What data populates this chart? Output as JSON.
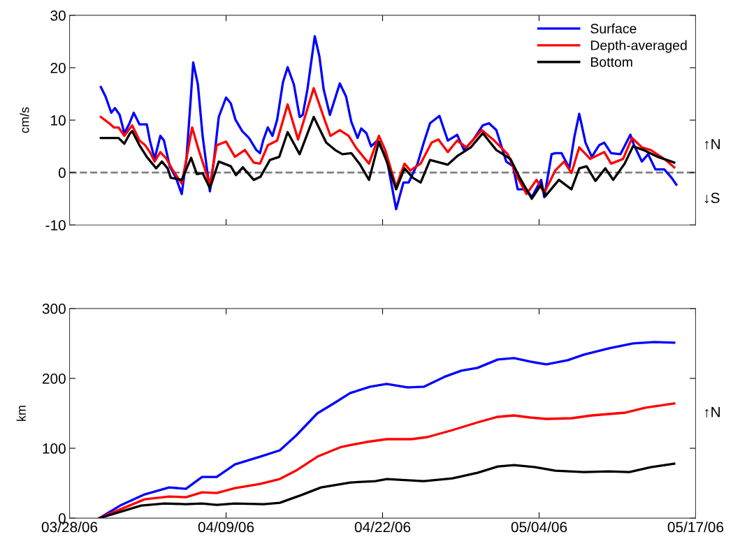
{
  "chart_data": [
    {
      "type": "line",
      "ylabel": "cm/s",
      "xlim": [
        "2006-03-28",
        "2006-05-17"
      ],
      "xticks": [
        {
          "value": "2006-03-28",
          "label": null
        },
        {
          "value": "2006-04-09T12:00",
          "label": null
        },
        {
          "value": "2006-04-22",
          "label": null
        },
        {
          "value": "2006-05-04T12:00",
          "label": null
        },
        {
          "value": "2006-05-17",
          "label": null
        }
      ],
      "ylim": [
        -10,
        30
      ],
      "yticks": [
        -10,
        0,
        10,
        20,
        30
      ],
      "tick_labels": "y",
      "legend": "top right",
      "line_style": "solid",
      "ref_lines": [
        {
          "axis": "y",
          "value": 0,
          "color": "#808080",
          "line_style": "dashed"
        }
      ],
      "annotations": [
        "↑N",
        "↓S"
      ],
      "series": [
        {
          "name": "Surface",
          "color": "#0000ff",
          "x": [
            "2006-03-30T12:00",
            "2006-03-30T21:00",
            "2006-03-31T08:00",
            "2006-03-31T15:00",
            "2006-04-01T00:00",
            "2006-04-01T09:00",
            "2006-04-01T18:00",
            "2006-04-02T03:00",
            "2006-04-02T14:00",
            "2006-04-03T04:00",
            "2006-04-03T10:00",
            "2006-04-03T19:00",
            "2006-04-04T06:00",
            "2006-04-04T13:00",
            "2006-04-05T00:00",
            "2006-04-05T12:00",
            "2006-04-05T23:00",
            "2006-04-06T08:00",
            "2006-04-06T16:00",
            "2006-04-06T21:00",
            "2006-04-07T06:00",
            "2006-04-07T15:00",
            "2006-04-08T05:00",
            "2006-04-08T13:00",
            "2006-04-08T22:00",
            "2006-04-09T12:00",
            "2006-04-09T21:00",
            "2006-04-10T06:00",
            "2006-04-10T19:00",
            "2006-04-11T08:00",
            "2006-04-11T22:00",
            "2006-04-12T05:00",
            "2006-04-12T11:00",
            "2006-04-12T20:00",
            "2006-04-13T05:00",
            "2006-04-13T14:00",
            "2006-04-14T01:00",
            "2006-04-14T10:00",
            "2006-04-14T22:00",
            "2006-04-15T09:00",
            "2006-04-15T15:00",
            "2006-04-16T00:00",
            "2006-04-16T14:00",
            "2006-04-16T23:00",
            "2006-04-17T07:00",
            "2006-04-17T19:00",
            "2006-04-18T02:00",
            "2006-04-18T14:00",
            "2006-04-19T02:00",
            "2006-04-19T12:00",
            "2006-04-20T00:00",
            "2006-04-20T07:00",
            "2006-04-20T17:00",
            "2006-04-21T02:00",
            "2006-04-21T14:00",
            "2006-04-22T08:00",
            "2006-04-23T02:00",
            "2006-04-23T16:00",
            "2006-04-24T02:00",
            "2006-04-24T19:00",
            "2006-04-25T07:00",
            "2006-04-25T19:00",
            "2006-04-26T13:00",
            "2006-04-27T05:00",
            "2006-04-27T23:00",
            "2006-04-28T12:00",
            "2006-04-29T06:00",
            "2006-04-30T00:00",
            "2006-04-30T12:00",
            "2006-05-01T02:00",
            "2006-05-01T21:00",
            "2006-05-02T10:00",
            "2006-05-02T19:00",
            "2006-05-03T12:00",
            "2006-05-03T22:00",
            "2006-05-04T16:00",
            "2006-05-04T22:00",
            "2006-05-05T12:00",
            "2006-05-05T19:00",
            "2006-05-06T07:00",
            "2006-05-06T22:00",
            "2006-05-07T08:00",
            "2006-05-07T17:00",
            "2006-05-08T05:00",
            "2006-05-08T17:00",
            "2006-05-09T07:00",
            "2006-05-09T17:00",
            "2006-05-10T06:00",
            "2006-05-11T00:00",
            "2006-05-11T19:00",
            "2006-05-12T02:00",
            "2006-05-12T17:00",
            "2006-05-13T05:00",
            "2006-05-13T19:00",
            "2006-05-14T12:00",
            "2006-05-15T02:00",
            "2006-05-15T11:00"
          ],
          "values": [
            16.3,
            14.5,
            11.4,
            12.3,
            11.0,
            7.5,
            9.2,
            11.4,
            9.2,
            9.2,
            6.1,
            2.6,
            7.0,
            6.1,
            1.2,
            -1.0,
            -4.1,
            2.6,
            13.7,
            21.0,
            16.8,
            7.0,
            -3.6,
            2.6,
            10.6,
            14.3,
            13.2,
            10.1,
            7.9,
            6.6,
            4.3,
            3.7,
            6.1,
            8.6,
            7.0,
            10.1,
            17.2,
            20.1,
            16.8,
            10.6,
            11.0,
            15.9,
            26.0,
            22.1,
            15.9,
            11.0,
            13.2,
            17.0,
            14.5,
            9.7,
            6.6,
            8.4,
            7.5,
            5.0,
            6.1,
            2.6,
            -7.0,
            -1.9,
            -1.9,
            1.7,
            5.7,
            9.4,
            10.8,
            6.1,
            7.2,
            4.3,
            6.3,
            9.0,
            9.4,
            8.1,
            2.1,
            1.2,
            -3.2,
            -3.2,
            -4.7,
            -1.4,
            -4.7,
            3.5,
            3.7,
            3.7,
            0.8,
            7.0,
            11.2,
            5.7,
            3.0,
            5.2,
            5.7,
            3.7,
            3.5,
            7.2,
            5.2,
            2.1,
            3.5,
            0.6,
            0.6,
            -1.0,
            -2.3
          ]
        },
        {
          "name": "Depth-averaged",
          "color": "#ff0000",
          "x": [
            "2006-03-30T12:00",
            "2006-03-31T04:00",
            "2006-03-31T13:00",
            "2006-03-31T22:00",
            "2006-04-01T09:00",
            "2006-04-02T00:00",
            "2006-04-02T14:00",
            "2006-04-03T01:00",
            "2006-04-03T10:00",
            "2006-04-03T19:00",
            "2006-04-04T06:00",
            "2006-04-04T18:00",
            "2006-04-05T05:00",
            "2006-04-05T23:00",
            "2006-04-06T08:00",
            "2006-04-06T19:00",
            "2006-04-07T06:00",
            "2006-04-08T05:00",
            "2006-04-08T18:00",
            "2006-04-09T12:00",
            "2006-04-10T05:00",
            "2006-04-11T00:00",
            "2006-04-11T17:00",
            "2006-04-12T05:00",
            "2006-04-12T20:00",
            "2006-04-13T14:00",
            "2006-04-14T10:00",
            "2006-04-15T06:00",
            "2006-04-16T12:00",
            "2006-04-17T07:00",
            "2006-04-17T20:00",
            "2006-04-18T14:00",
            "2006-04-19T07:00",
            "2006-04-19T22:00",
            "2006-04-20T22:00",
            "2006-04-21T17:00",
            "2006-04-22T05:00",
            "2006-04-23T02:00",
            "2006-04-23T18:00",
            "2006-04-24T05:00",
            "2006-04-25T01:00",
            "2006-04-25T22:00",
            "2006-04-26T11:00",
            "2006-04-27T05:00",
            "2006-04-27T23:00",
            "2006-04-28T17:00",
            "2006-04-29T22:00",
            "2006-04-30T22:00",
            "2006-05-02T00:00",
            "2006-05-02T19:00",
            "2006-05-03T12:00",
            "2006-05-04T07:00",
            "2006-05-04T22:00",
            "2006-05-05T19:00",
            "2006-05-06T12:00",
            "2006-05-07T02:00",
            "2006-05-07T17:00",
            "2006-05-08T14:00",
            "2006-05-09T17:00",
            "2006-05-10T06:00",
            "2006-05-11T05:00",
            "2006-05-11T22:00",
            "2006-05-12T17:00",
            "2006-05-13T10:00",
            "2006-05-14T12:00",
            "2006-05-15T07:00"
          ],
          "values": [
            10.6,
            9.4,
            8.6,
            8.6,
            7.0,
            9.0,
            6.1,
            5.2,
            3.9,
            2.1,
            3.9,
            2.6,
            0.6,
            -2.1,
            2.6,
            8.6,
            4.8,
            -2.3,
            5.2,
            5.9,
            3.0,
            4.3,
            1.9,
            1.7,
            5.2,
            6.1,
            13.0,
            6.3,
            16.1,
            10.6,
            7.0,
            8.1,
            7.0,
            4.6,
            1.7,
            7.0,
            4.3,
            -2.7,
            1.7,
            0.4,
            1.7,
            5.7,
            6.3,
            3.9,
            6.1,
            4.8,
            8.1,
            6.1,
            3.5,
            -1.0,
            -4.1,
            -1.4,
            -3.9,
            0.4,
            2.1,
            -0.1,
            4.8,
            2.6,
            3.9,
            1.7,
            2.6,
            6.6,
            4.8,
            4.3,
            2.6,
            1.0
          ]
        },
        {
          "name": "Bottom",
          "color": "#000000",
          "x": [
            "2006-03-30T12:00",
            "2006-03-31T04:00",
            "2006-03-31T22:00",
            "2006-04-01T09:00",
            "2006-04-01T20:00",
            "2006-04-02T00:00",
            "2006-04-02T14:00",
            "2006-04-03T04:00",
            "2006-04-03T22:00",
            "2006-04-04T09:00",
            "2006-04-04T20:00",
            "2006-04-05T02:00",
            "2006-04-05T23:00",
            "2006-04-06T17:00",
            "2006-04-07T04:00",
            "2006-04-07T15:00",
            "2006-04-08T05:00",
            "2006-04-08T22:00",
            "2006-04-09T21:00",
            "2006-04-10T07:00",
            "2006-04-10T20:00",
            "2006-04-11T17:00",
            "2006-04-12T06:00",
            "2006-04-13T00:00",
            "2006-04-13T18:00",
            "2006-04-14T10:00",
            "2006-04-15T09:00",
            "2006-04-16T12:00",
            "2006-04-17T12:00",
            "2006-04-18T05:00",
            "2006-04-18T19:00",
            "2006-04-19T12:00",
            "2006-04-20T05:00",
            "2006-04-20T22:00",
            "2006-04-21T17:00",
            "2006-04-22T08:00",
            "2006-04-23T02:00",
            "2006-04-23T18:00",
            "2006-04-24T10:00",
            "2006-04-25T01:00",
            "2006-04-25T19:00",
            "2006-04-27T05:00",
            "2006-04-28T00:00",
            "2006-04-29T01:00",
            "2006-04-30T00:00",
            "2006-05-01T02:00",
            "2006-05-02T05:00",
            "2006-05-02T23:00",
            "2006-05-03T22:00",
            "2006-05-04T16:00",
            "2006-05-05T00:00",
            "2006-05-06T02:00",
            "2006-05-07T02:00",
            "2006-05-07T17:00",
            "2006-05-08T07:00",
            "2006-05-09T00:00",
            "2006-05-09T19:00",
            "2006-05-10T10:00",
            "2006-05-11T08:00",
            "2006-05-12T00:00",
            "2006-05-12T20:00",
            "2006-05-13T23:00",
            "2006-05-14T17:00",
            "2006-05-15T07:00"
          ],
          "values": [
            6.6,
            6.6,
            6.6,
            5.5,
            7.5,
            7.9,
            5.2,
            3.0,
            0.8,
            2.1,
            0.8,
            -1.0,
            -1.4,
            2.8,
            -0.3,
            -0.1,
            -3.0,
            2.1,
            1.2,
            -0.5,
            1.0,
            -1.4,
            -0.8,
            2.4,
            3.0,
            7.7,
            3.5,
            10.6,
            5.7,
            4.3,
            3.5,
            3.7,
            1.5,
            -1.4,
            5.9,
            2.1,
            -3.2,
            0.8,
            -1.0,
            -1.9,
            2.4,
            1.5,
            3.2,
            4.8,
            7.5,
            4.3,
            2.6,
            -1.0,
            -5.0,
            -2.3,
            -4.5,
            -1.4,
            -3.2,
            0.8,
            1.2,
            -1.6,
            0.8,
            -1.4,
            1.7,
            5.0,
            4.3,
            3.0,
            2.4,
            1.9
          ]
        }
      ]
    },
    {
      "type": "line",
      "ylabel": "km",
      "xlim": [
        "2006-03-28",
        "2006-05-17"
      ],
      "xticks": [
        {
          "value": "2006-03-28",
          "label": "03/28/06"
        },
        {
          "value": "2006-04-09T12:00",
          "label": "04/09/06"
        },
        {
          "value": "2006-04-22",
          "label": "04/22/06"
        },
        {
          "value": "2006-05-04T12:00",
          "label": "05/04/06"
        },
        {
          "value": "2006-05-17",
          "label": "05/17/06"
        }
      ],
      "ylim": [
        0,
        300
      ],
      "yticks": [
        0,
        100,
        200,
        300
      ],
      "line_style": "solid",
      "annotations": [
        "↑N"
      ],
      "series": [
        {
          "color": "#0000ff",
          "x": [
            "2006-03-30T09:00",
            "2006-04-01T01:00",
            "2006-04-03T00:00",
            "2006-04-04T23:00",
            "2006-04-06T07:00",
            "2006-04-07T14:00",
            "2006-04-08T18:00",
            "2006-04-10T05:00",
            "2006-04-12T05:00",
            "2006-04-13T19:00",
            "2006-04-15T02:00",
            "2006-04-16T19:00",
            "2006-04-18T02:00",
            "2006-04-19T10:00",
            "2006-04-21T00:00",
            "2006-04-22T08:00",
            "2006-04-24T00:00",
            "2006-04-25T07:00",
            "2006-04-26T22:00",
            "2006-04-28T07:00",
            "2006-04-29T14:00",
            "2006-05-01T05:00",
            "2006-05-02T12:00",
            "2006-05-03T19:00",
            "2006-05-05T02:00",
            "2006-05-06T19:00",
            "2006-05-08T02:00",
            "2006-05-10T02:00",
            "2006-05-12T00:00",
            "2006-05-13T17:00",
            "2006-05-15T07:00"
          ],
          "values": [
            0,
            18,
            34,
            44,
            42,
            59,
            59,
            77,
            88,
            97,
            118,
            150,
            164,
            179,
            188,
            192,
            187,
            188,
            202,
            211,
            215,
            227,
            229,
            224,
            220,
            226,
            234,
            243,
            250,
            252,
            251
          ]
        },
        {
          "color": "#ff0000",
          "x": [
            "2006-03-30T09:00",
            "2006-04-01T09:00",
            "2006-04-03T00:00",
            "2006-04-04T23:00",
            "2006-04-06T07:00",
            "2006-04-07T14:00",
            "2006-04-08T18:00",
            "2006-04-10T05:00",
            "2006-04-12T05:00",
            "2006-04-13T19:00",
            "2006-04-15T02:00",
            "2006-04-16T19:00",
            "2006-04-18T17:00",
            "2006-04-20T17:00",
            "2006-04-22T08:00",
            "2006-04-24T07:00",
            "2006-04-25T14:00",
            "2006-04-27T14:00",
            "2006-04-29T14:00",
            "2006-05-01T05:00",
            "2006-05-02T12:00",
            "2006-05-03T19:00",
            "2006-05-05T02:00",
            "2006-05-07T02:00",
            "2006-05-08T17:00",
            "2006-05-11T10:00",
            "2006-05-13T00:00",
            "2006-05-15T07:00"
          ],
          "values": [
            0,
            15,
            27,
            31,
            30,
            37,
            36,
            43,
            49,
            56,
            68,
            88,
            102,
            109,
            113,
            113,
            116,
            126,
            137,
            145,
            147,
            144,
            142,
            143,
            147,
            151,
            158,
            164
          ]
        },
        {
          "color": "#000000",
          "x": [
            "2006-03-30T09:00",
            "2006-04-01T01:00",
            "2006-04-02T17:00",
            "2006-04-04T14:00",
            "2006-04-06T07:00",
            "2006-04-07T14:00",
            "2006-04-08T18:00",
            "2006-04-10T05:00",
            "2006-04-12T12:00",
            "2006-04-13T19:00",
            "2006-04-15T12:00",
            "2006-04-17T02:00",
            "2006-04-19T10:00",
            "2006-04-21T10:00",
            "2006-04-22T08:00",
            "2006-04-25T07:00",
            "2006-04-27T14:00",
            "2006-04-29T14:00",
            "2006-05-01T05:00",
            "2006-05-02T12:00",
            "2006-05-04T05:00",
            "2006-05-05T19:00",
            "2006-05-08T02:00",
            "2006-05-10T02:00",
            "2006-05-11T17:00",
            "2006-05-13T10:00",
            "2006-05-15T07:00"
          ],
          "values": [
            0,
            9,
            18,
            21,
            20,
            21,
            19,
            21,
            20,
            22,
            33,
            44,
            51,
            53,
            56,
            53,
            57,
            65,
            74,
            76,
            73,
            68,
            66,
            67,
            66,
            73,
            78
          ]
        }
      ]
    }
  ]
}
